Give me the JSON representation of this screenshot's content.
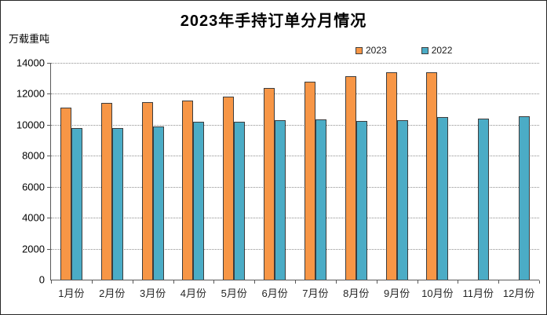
{
  "window": {
    "kind": "static-chart-screenshot"
  },
  "chart_data": {
    "type": "bar",
    "title": "2023年手持订单分月情况",
    "ylabel": "万载重吨",
    "xlabel": "",
    "categories": [
      "1月份",
      "2月份",
      "3月份",
      "4月份",
      "5月份",
      "6月份",
      "7月份",
      "8月份",
      "9月份",
      "10月份",
      "11月份",
      "12月份"
    ],
    "series": [
      {
        "name": "2023",
        "color": "#F79646",
        "values": [
          11100,
          11400,
          11450,
          11550,
          11800,
          12400,
          12800,
          13150,
          13400,
          13400,
          null,
          null
        ]
      },
      {
        "name": "2022",
        "color": "#4BACC6",
        "values": [
          9800,
          9800,
          9900,
          10200,
          10200,
          10300,
          10350,
          10250,
          10300,
          10500,
          10400,
          10550
        ]
      }
    ],
    "ylim": [
      0,
      14000
    ],
    "yticks": [
      0,
      2000,
      4000,
      6000,
      8000,
      10000,
      12000,
      14000
    ],
    "grid": "horizontal-dotted",
    "legend_position": "top-right-above-plot",
    "bar_border_color": "#3d3d3d",
    "gridline_color": "#8f8f8f",
    "axis_color": "#595959"
  }
}
